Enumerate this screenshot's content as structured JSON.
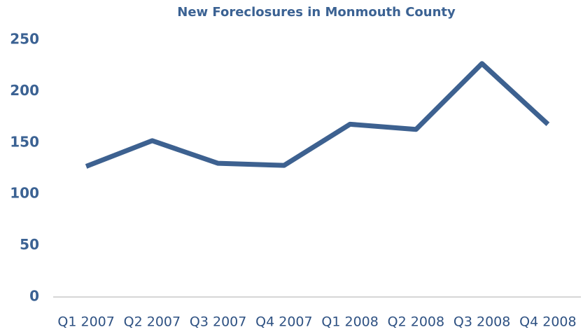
{
  "chart_data": {
    "type": "line",
    "title": "New Foreclosures in Monmouth County",
    "categories": [
      "Q1 2007",
      "Q2 2007",
      "Q3 2007",
      "Q4 2007",
      "Q1 2008",
      "Q2 2008",
      "Q3 2008",
      "Q4 2008"
    ],
    "values": [
      127,
      152,
      130,
      128,
      168,
      163,
      227,
      168
    ],
    "color": "#3d6190",
    "ylim": [
      0,
      250
    ],
    "yticks": [
      0,
      50,
      100,
      150,
      200,
      250
    ],
    "grid": false
  }
}
